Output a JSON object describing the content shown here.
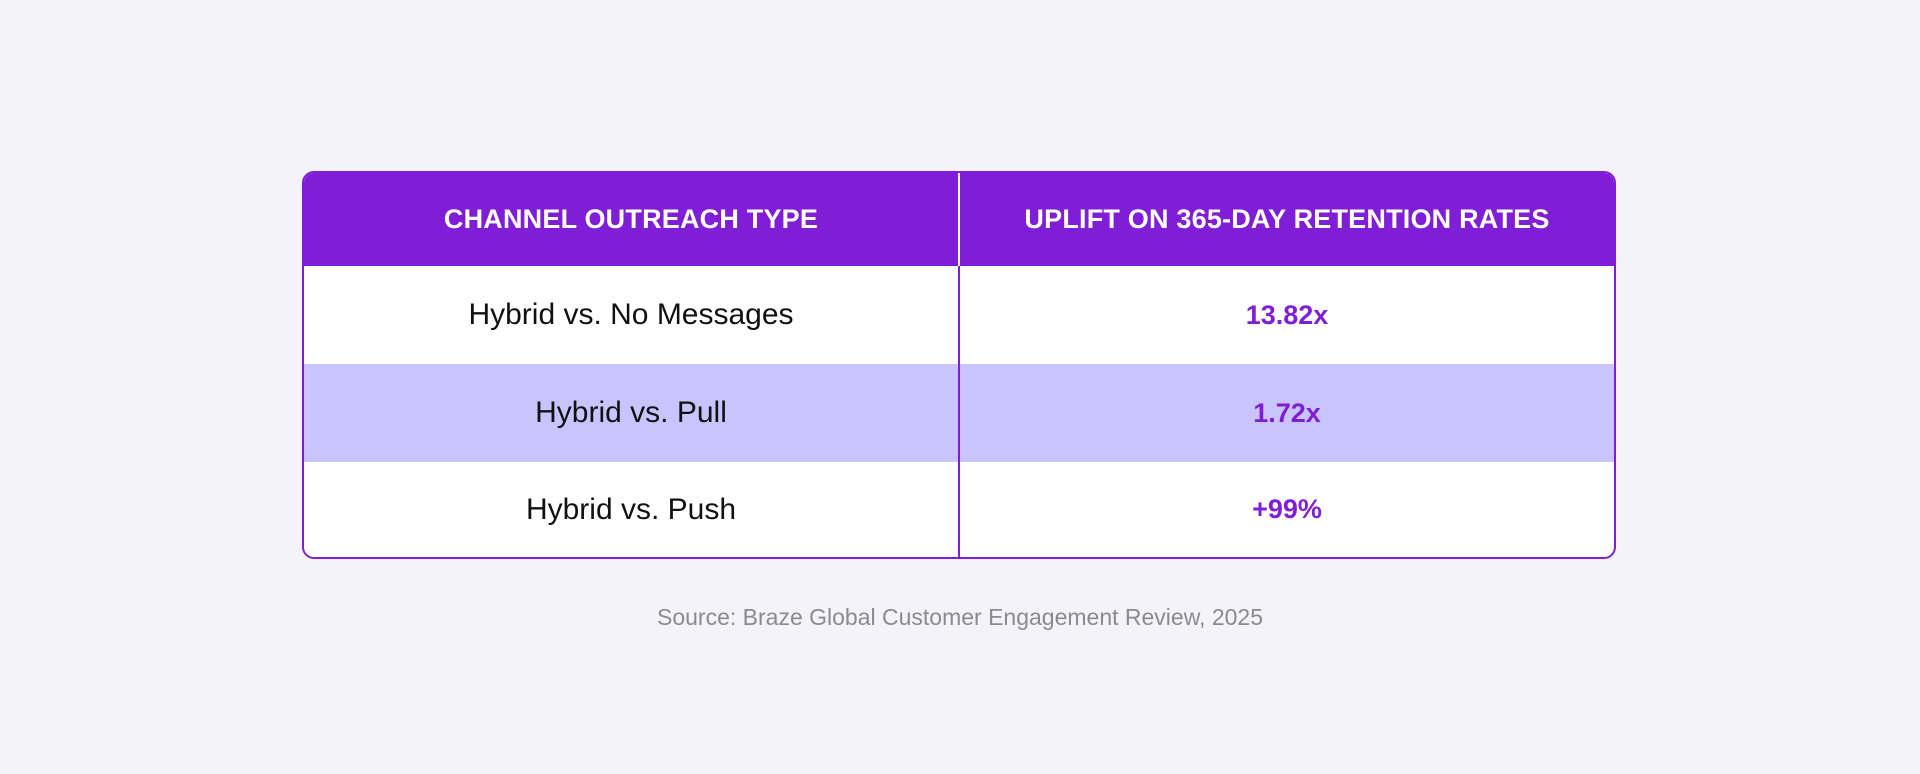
{
  "table": {
    "headers": [
      "CHANNEL OUTREACH TYPE",
      "UPLIFT ON 365-DAY RETENTION RATES"
    ],
    "rows": [
      {
        "type": "Hybrid vs. No Messages",
        "uplift": "13.82x"
      },
      {
        "type": "Hybrid vs. Pull",
        "uplift": "1.72x"
      },
      {
        "type": "Hybrid vs. Push",
        "uplift": "+99%"
      }
    ]
  },
  "source": "Source: Braze Global Customer Engagement Review, 2025",
  "colors": {
    "accent": "#801ed7",
    "alt_row": "#c9c4ff",
    "background": "#f4f3f9"
  }
}
